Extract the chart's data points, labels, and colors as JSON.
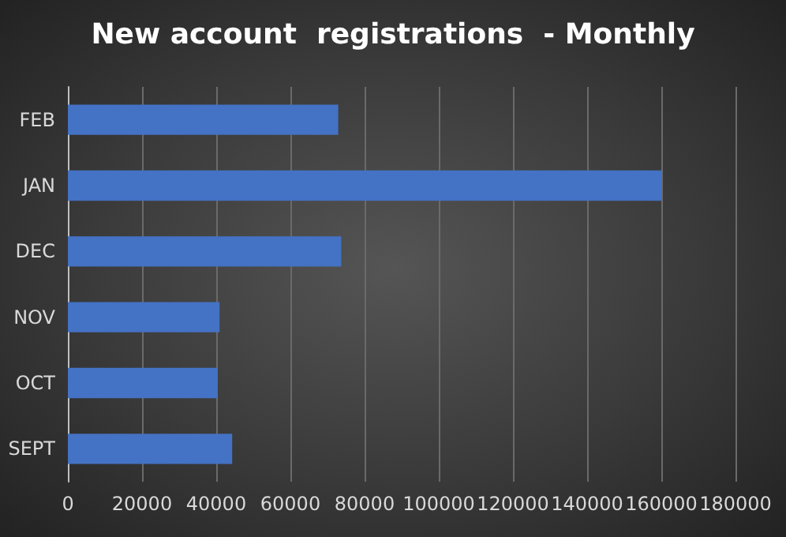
{
  "chart_data": {
    "type": "bar",
    "orientation": "horizontal",
    "title": "New account  registrations  - Monthly",
    "categories": [
      "FEB",
      "JAN",
      "DEC",
      "NOV",
      "OCT",
      "SEPT"
    ],
    "values": [
      72900,
      160000,
      73700,
      40900,
      40400,
      44300
    ],
    "color": "#4472c4",
    "xlim": [
      0,
      180000
    ],
    "xticks": [
      0,
      20000,
      40000,
      60000,
      80000,
      100000,
      120000,
      140000,
      160000,
      180000
    ],
    "grid": "x"
  }
}
